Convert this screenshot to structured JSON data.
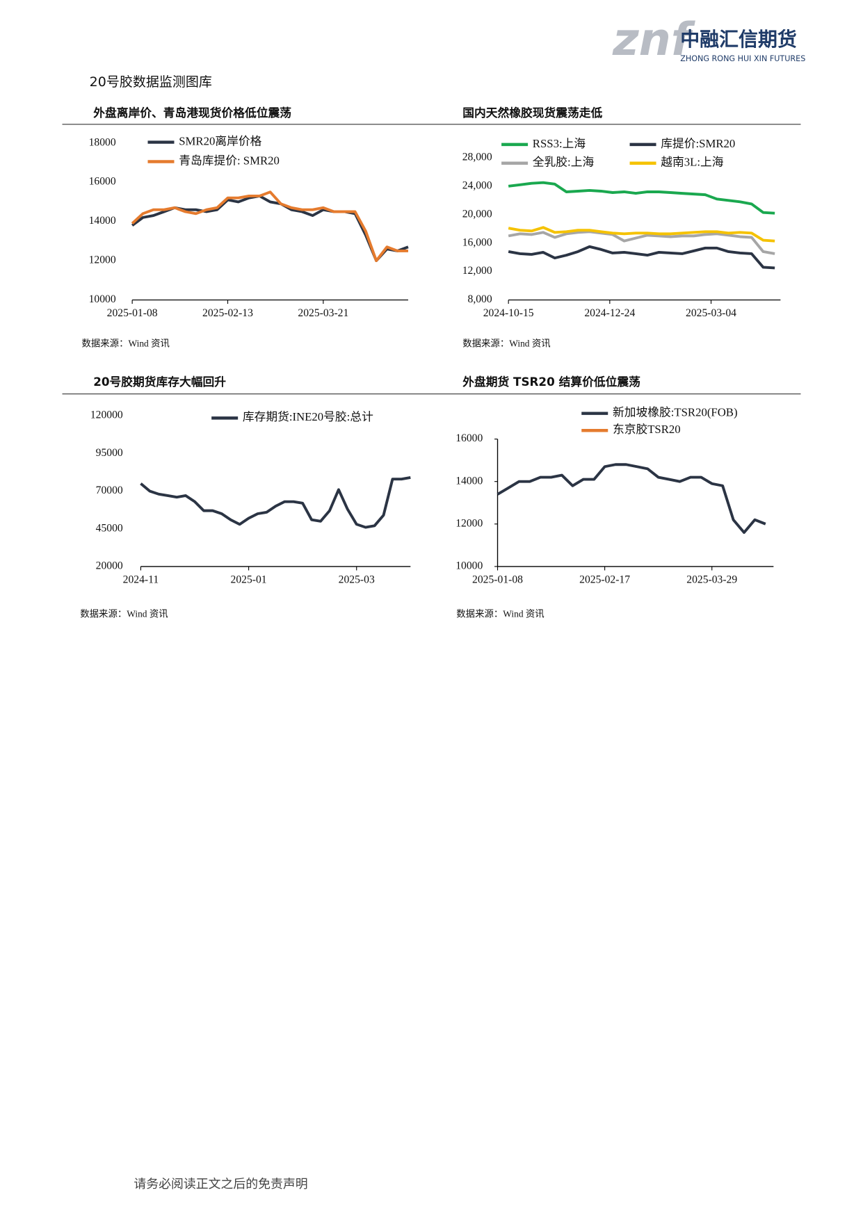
{
  "header": {
    "logo_mark": "znf",
    "company": "中融汇信期货",
    "company_en": "ZHONG RONG HUI XIN FUTURES"
  },
  "page_title": "20号胶数据监测图库",
  "footer": "请务必阅读正文之后的免责声明",
  "chart_data": [
    {
      "type": "line",
      "title": "外盘离岸价、青岛港现货价格低位震荡",
      "source": "数据来源：Wind 资讯",
      "x": [
        "2025-01-08",
        "2025-01-12",
        "2025-01-16",
        "2025-01-20",
        "2025-01-24",
        "2025-01-28",
        "2025-02-01",
        "2025-02-05",
        "2025-02-09",
        "2025-02-13",
        "2025-02-17",
        "2025-02-21",
        "2025-02-25",
        "2025-03-01",
        "2025-03-05",
        "2025-03-09",
        "2025-03-13",
        "2025-03-17",
        "2025-03-21",
        "2025-03-25",
        "2025-03-29",
        "2025-04-02",
        "2025-04-06",
        "2025-04-10",
        "2025-04-14",
        "2025-04-18",
        "2025-04-22"
      ],
      "xlim": [
        "2025-01-08",
        "2025-04-22"
      ],
      "xticks": [
        "2025-01-08",
        "2025-02-13",
        "2025-03-21"
      ],
      "ylim": [
        10000,
        18000
      ],
      "yticks": [
        10000,
        12000,
        14000,
        16000,
        18000
      ],
      "series": [
        {
          "name": "SMR20离岸价格",
          "color": "#2b3444",
          "values": [
            13800,
            14200,
            14300,
            14500,
            14700,
            14600,
            14600,
            14500,
            14600,
            15100,
            15000,
            15200,
            15300,
            15000,
            14900,
            14600,
            14500,
            14300,
            14600,
            14500,
            14500,
            14400,
            13300,
            12000,
            12600,
            12500,
            12700
          ]
        },
        {
          "name": "青岛库提价: SMR20",
          "color": "#e57b2e",
          "values": [
            13900,
            14400,
            14600,
            14600,
            14700,
            14500,
            14400,
            14600,
            14700,
            15200,
            15200,
            15300,
            15300,
            15500,
            14900,
            14700,
            14600,
            14600,
            14700,
            14500,
            14500,
            14500,
            13500,
            12000,
            12700,
            12500,
            12500
          ]
        }
      ]
    },
    {
      "type": "line",
      "title": "国内天然橡胶现货震荡走低",
      "source": "数据来源：Wind 资讯",
      "x": [
        "2024-10-15",
        "2024-10-23",
        "2024-10-31",
        "2024-11-08",
        "2024-11-16",
        "2024-11-24",
        "2024-12-02",
        "2024-12-10",
        "2024-12-18",
        "2024-12-26",
        "2025-01-03",
        "2025-01-11",
        "2025-01-19",
        "2025-01-27",
        "2025-02-04",
        "2025-02-12",
        "2025-02-20",
        "2025-02-28",
        "2025-03-08",
        "2025-03-16",
        "2025-03-24",
        "2025-04-01",
        "2025-04-09",
        "2025-04-17"
      ],
      "xlim": [
        "2024-10-15",
        "2025-04-21"
      ],
      "xticks": [
        "2024-10-15",
        "2024-12-24",
        "2025-03-04"
      ],
      "ylim": [
        8000,
        28000
      ],
      "yticks": [
        {
          "value": 8000,
          "label": "8,000"
        },
        {
          "value": 12000,
          "label": "12,000"
        },
        {
          "value": 16000,
          "label": "16,000"
        },
        {
          "value": 20000,
          "label": "20,000"
        },
        {
          "value": 24000,
          "label": "24,000"
        },
        {
          "value": 28000,
          "label": "28,000"
        }
      ],
      "series": [
        {
          "name": "RSS3:上海",
          "color": "#1aa84f",
          "values": [
            24000,
            24200,
            24400,
            24500,
            24300,
            23200,
            23300,
            23400,
            23300,
            23100,
            23200,
            23000,
            23200,
            23200,
            23100,
            23000,
            22900,
            22800,
            22200,
            22000,
            21800,
            21500,
            20300,
            20200
          ]
        },
        {
          "name": "库提价:SMR20",
          "color": "#2b3444",
          "values": [
            14800,
            14500,
            14400,
            14700,
            13900,
            14300,
            14800,
            15500,
            15100,
            14600,
            14700,
            14500,
            14300,
            14700,
            14600,
            14500,
            14900,
            15300,
            15300,
            14800,
            14600,
            14500,
            12600,
            12500
          ]
        },
        {
          "name": "全乳胶:上海",
          "color": "#a6a6a6",
          "values": [
            17000,
            17300,
            17200,
            17500,
            16800,
            17300,
            17500,
            17600,
            17400,
            17200,
            16300,
            16700,
            17100,
            17000,
            16900,
            17000,
            17000,
            17200,
            17300,
            17100,
            16900,
            16800,
            14800,
            14500
          ]
        },
        {
          "name": "越南3L:上海",
          "color": "#f5c200",
          "values": [
            18100,
            17800,
            17700,
            18200,
            17500,
            17600,
            17800,
            17800,
            17600,
            17400,
            17300,
            17400,
            17400,
            17300,
            17300,
            17400,
            17500,
            17600,
            17600,
            17400,
            17500,
            17400,
            16400,
            16300
          ]
        }
      ]
    },
    {
      "type": "line",
      "title": "20号胶期货库存大幅回升",
      "source": "数据来源：Wind 资讯",
      "categories": [
        "2024-11",
        null,
        null,
        null,
        null,
        null,
        null,
        null,
        null,
        null,
        null,
        null,
        "2025-01",
        null,
        null,
        null,
        null,
        null,
        null,
        null,
        null,
        null,
        null,
        null,
        "2025-03",
        null,
        null,
        null,
        null,
        null,
        null
      ],
      "ylim": [
        20000,
        120000
      ],
      "yticks": [
        20000,
        45000,
        70000,
        95000,
        120000
      ],
      "series": [
        {
          "name": "库存期货:INE20号胶:总计",
          "color": "#2b3444",
          "values": [
            75000,
            70000,
            68000,
            67000,
            66000,
            67000,
            63000,
            57000,
            57000,
            55000,
            51000,
            48000,
            52000,
            55000,
            56000,
            60000,
            63000,
            63000,
            62000,
            51000,
            50000,
            57000,
            71000,
            58000,
            48000,
            46000,
            47000,
            54000,
            78000,
            78000,
            79000
          ]
        }
      ]
    },
    {
      "type": "line",
      "title": "外盘期货 TSR20 结算价低位震荡",
      "source": "数据来源：Wind 资讯",
      "x": [
        "2025-01-08",
        "2025-01-12",
        "2025-01-16",
        "2025-01-20",
        "2025-01-24",
        "2025-01-28",
        "2025-02-01",
        "2025-02-05",
        "2025-02-09",
        "2025-02-13",
        "2025-02-17",
        "2025-02-21",
        "2025-02-25",
        "2025-03-01",
        "2025-03-05",
        "2025-03-09",
        "2025-03-13",
        "2025-03-17",
        "2025-03-21",
        "2025-03-25",
        "2025-03-29",
        "2025-04-02",
        "2025-04-06",
        "2025-04-10",
        "2025-04-14",
        "2025-04-18"
      ],
      "xlim": [
        "2025-01-08",
        "2025-04-21"
      ],
      "xticks": [
        "2025-01-08",
        "2025-02-17",
        "2025-03-29"
      ],
      "ylim": [
        10000,
        16000
      ],
      "yticks": [
        10000,
        12000,
        14000,
        16000
      ],
      "series": [
        {
          "name": "新加坡橡胶:TSR20(FOB)",
          "color": "#2b3444",
          "values": [
            13400,
            13700,
            14000,
            14000,
            14200,
            14200,
            14300,
            13800,
            14100,
            14100,
            14700,
            14800,
            14800,
            14700,
            14600,
            14200,
            14100,
            14000,
            14200,
            14200,
            13900,
            13800,
            12200,
            11600,
            12200,
            12000
          ]
        },
        {
          "name": "东京胶TSR20",
          "color": "#e57b2e",
          "values": [
            null,
            null,
            null,
            null,
            null,
            null,
            null,
            null,
            null,
            null,
            null,
            null,
            null,
            null,
            null,
            null,
            null,
            null,
            null,
            null,
            null,
            null,
            null,
            null,
            null,
            null
          ]
        }
      ]
    }
  ]
}
